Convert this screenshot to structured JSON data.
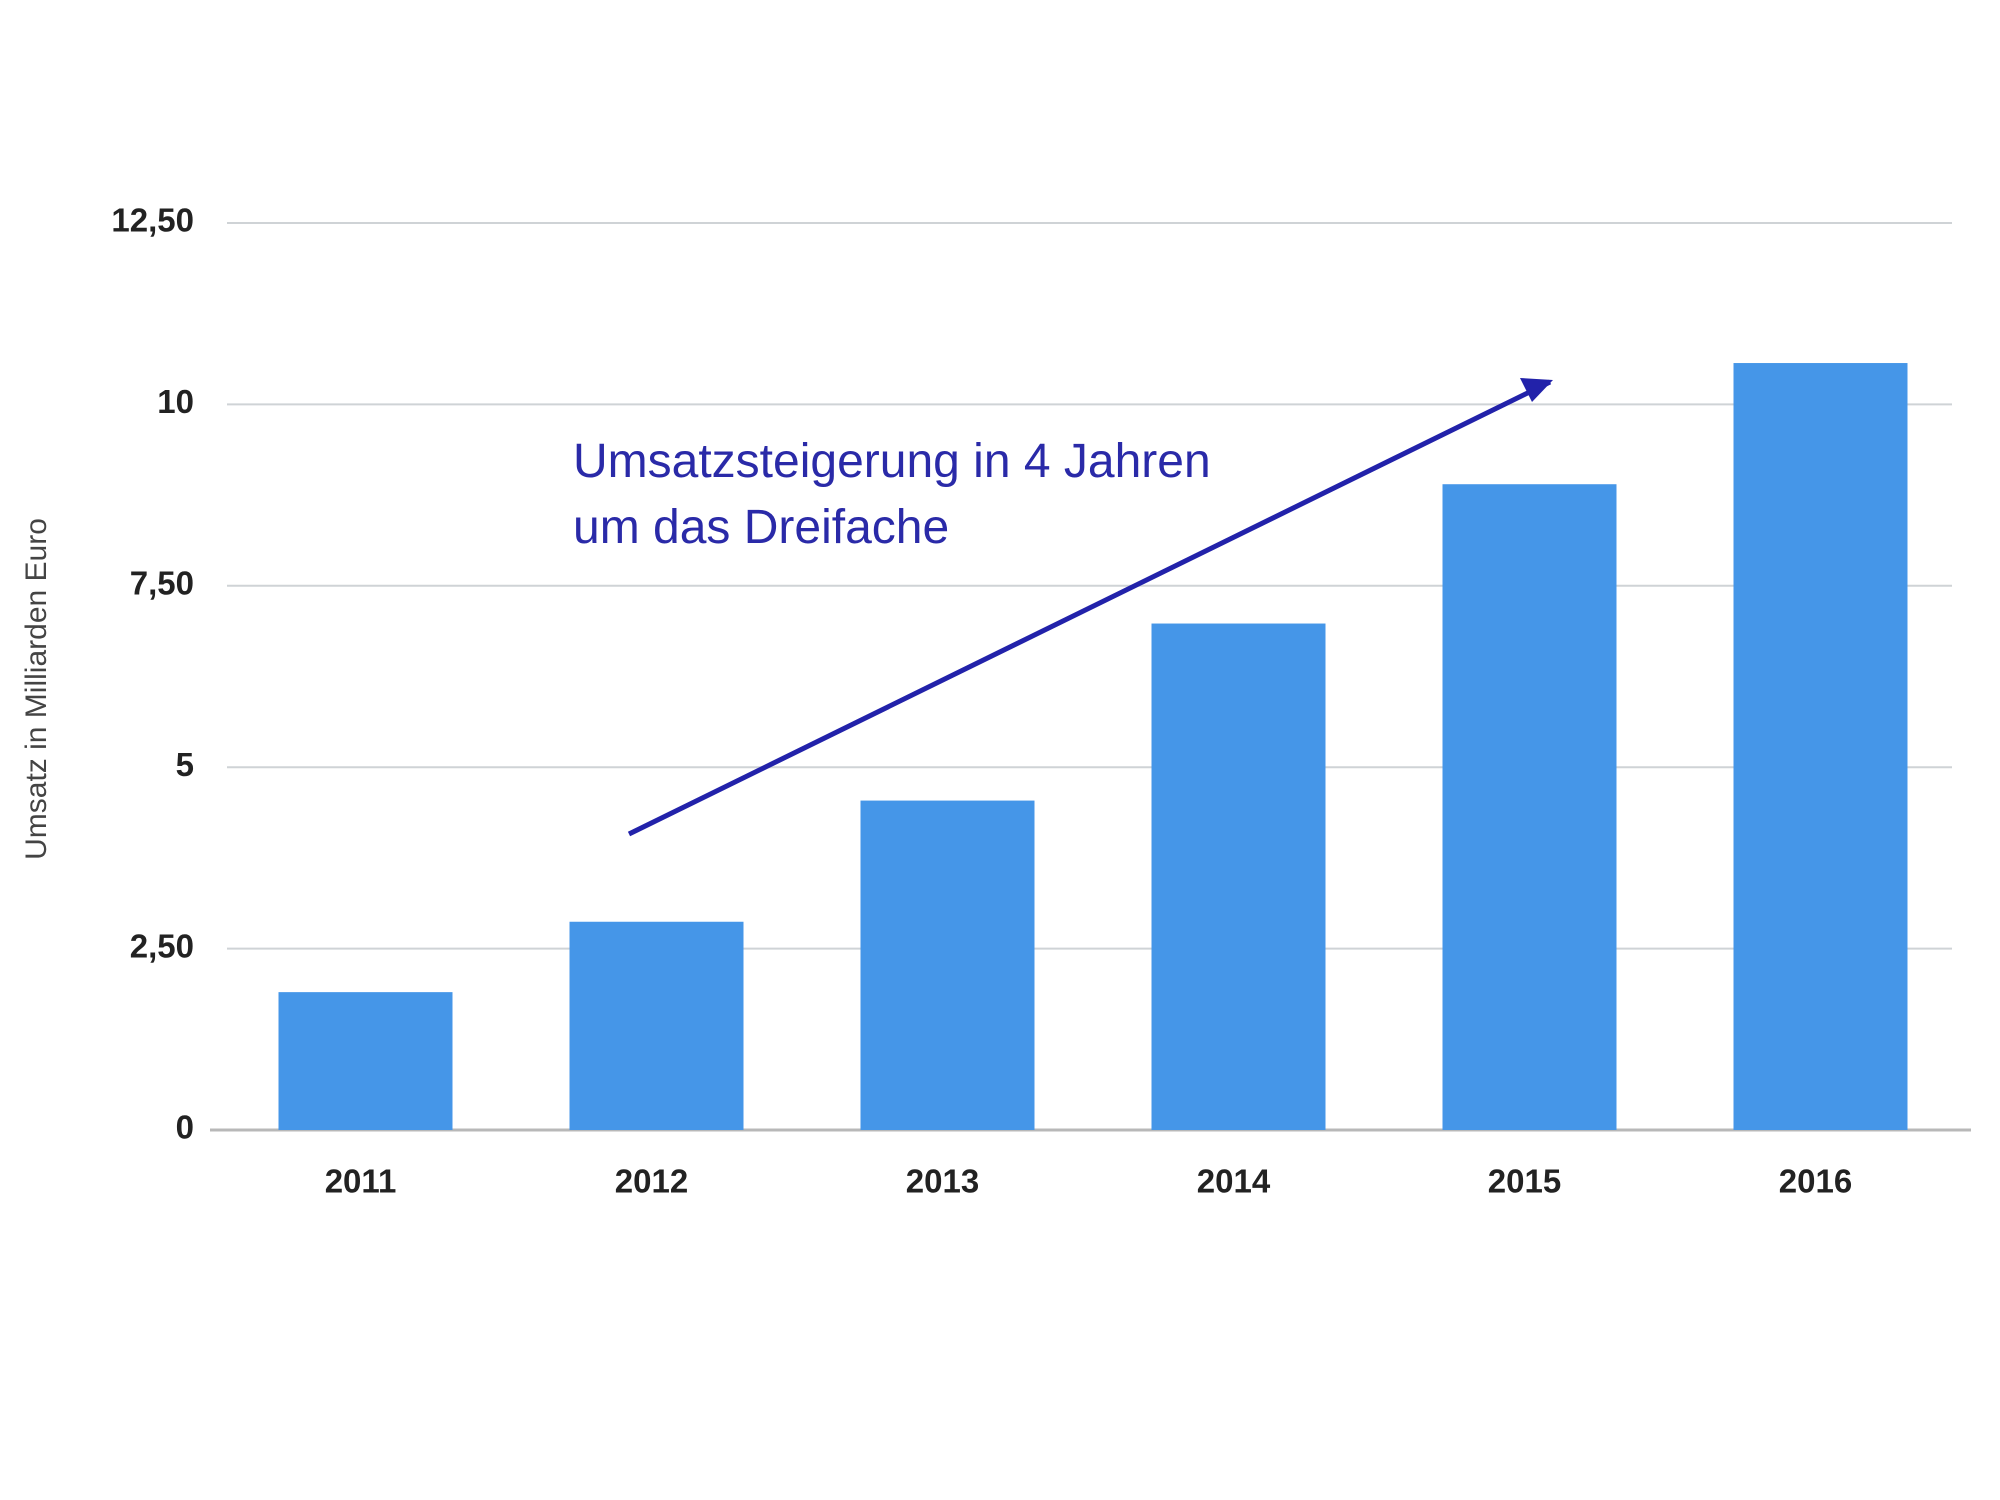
{
  "chart_data": {
    "type": "bar",
    "y_label": "Umsatz in Milliarden Euro",
    "annotation": [
      "Umsatzsteigerung in 4 Jahren",
      "um das Dreifache"
    ],
    "categories": [
      "2011",
      "2012",
      "2013",
      "2014",
      "2015",
      "2016"
    ],
    "values": [
      1.9,
      2.87,
      4.54,
      6.98,
      8.9,
      10.57
    ],
    "color": "#4596e8",
    "ylim": [
      0,
      12.5
    ],
    "yticks": [
      0,
      {
        "value": 2.5,
        "label": "2,50"
      },
      5,
      {
        "value": 7.5,
        "label": "7,50"
      },
      10,
      {
        "value": 12.5,
        "label": "12,50"
      }
    ],
    "grid": true
  }
}
